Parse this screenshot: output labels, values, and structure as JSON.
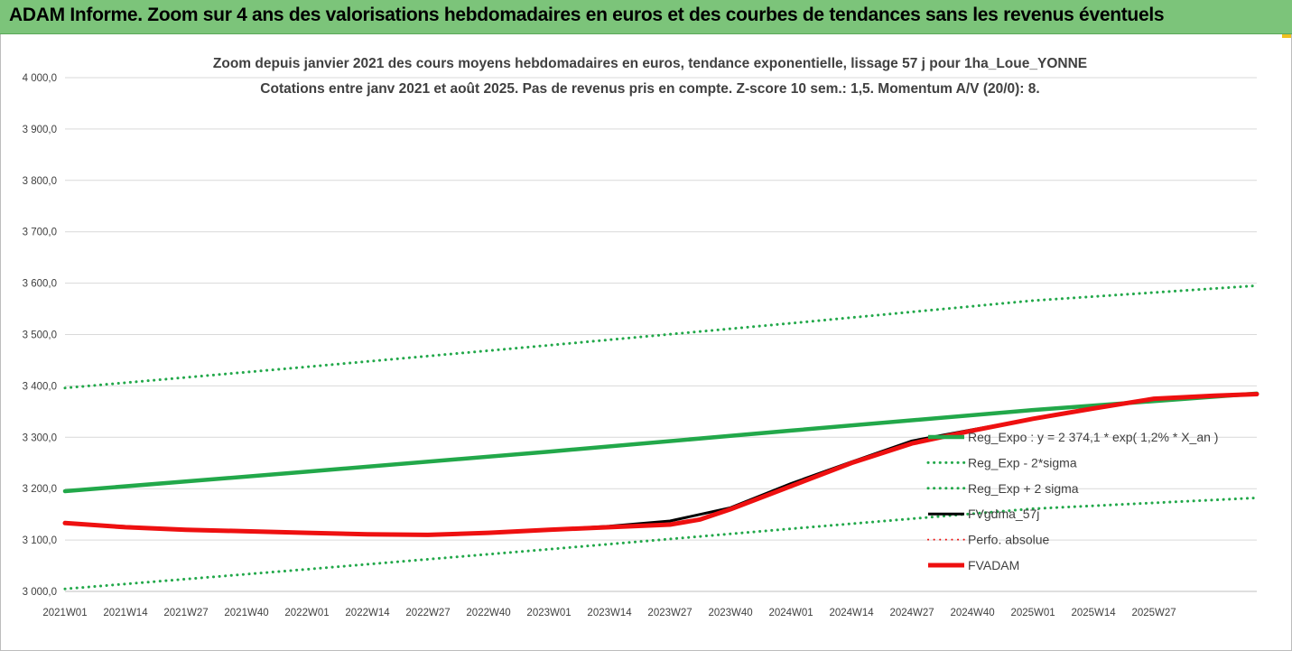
{
  "banner": {
    "title": "ADAM Informe. Zoom sur 4 ans des valorisations hebdomadaires en euros et des courbes de tendances sans les revenus éventuels"
  },
  "chart_data": {
    "type": "line",
    "title": "Zoom depuis janvier 2021 des cours moyens hebdomadaires en euros, tendance exponentielle, lissage 57 j pour 1ha_Loue_YONNE",
    "subtitle": "Cotations entre janv 2021 et août 2025.  Pas de revenus pris en compte. Z-score 10 sem.: 1,5. Momentum A/V (20/0): 8.",
    "xlabel": "",
    "ylabel": "",
    "ylim": [
      3000,
      4000
    ],
    "yticks": [
      "3 000,0",
      "3 100,0",
      "3 200,0",
      "3 300,0",
      "3 400,0",
      "3 500,0",
      "3 600,0",
      "3 700,0",
      "3 800,0",
      "3 900,0",
      "4 000,0"
    ],
    "categories": [
      "2021W01",
      "2021W14",
      "2021W27",
      "2021W40",
      "2022W01",
      "2022W14",
      "2022W27",
      "2022W40",
      "2023W01",
      "2023W14",
      "2023W27",
      "2023W40",
      "2024W01",
      "2024W14",
      "2024W27",
      "2024W40",
      "2025W01",
      "2025W14",
      "2025W27"
    ],
    "x_end_index": 19.7,
    "grid": "horizontal",
    "legend_position": "right",
    "series": [
      {
        "name": "Reg_Expo : y = 2 374,1 * exp( 1,2% *  X_an )",
        "color": "#22a84a",
        "style": "solid",
        "width": 4.5,
        "points": [
          [
            0,
            3195
          ],
          [
            4,
            3233
          ],
          [
            8,
            3272
          ],
          [
            12,
            3313
          ],
          [
            16,
            3353
          ],
          [
            19.7,
            3385
          ]
        ]
      },
      {
        "name": "Reg_Exp - 2*sigma",
        "color": "#22a84a",
        "style": "dotted",
        "width": 3,
        "points": [
          [
            0,
            3005
          ],
          [
            4,
            3043
          ],
          [
            8,
            3082
          ],
          [
            12,
            3122
          ],
          [
            16,
            3161
          ],
          [
            19.7,
            3182
          ]
        ]
      },
      {
        "name": "Reg_Exp + 2 sigma",
        "color": "#22a84a",
        "style": "dotted",
        "width": 3,
        "points": [
          [
            0,
            3396
          ],
          [
            4,
            3437
          ],
          [
            8,
            3479
          ],
          [
            12,
            3522
          ],
          [
            16,
            3566
          ],
          [
            19.7,
            3595
          ]
        ]
      },
      {
        "name": "FVgdma_57j",
        "color": "#000000",
        "style": "solid",
        "width": 3,
        "points": [
          [
            0,
            3133
          ],
          [
            2,
            3120
          ],
          [
            4,
            3114
          ],
          [
            6,
            3110
          ],
          [
            8,
            3120
          ],
          [
            9,
            3127
          ],
          [
            10,
            3137
          ],
          [
            11,
            3163
          ],
          [
            12,
            3210
          ],
          [
            13,
            3252
          ],
          [
            14,
            3293
          ],
          [
            15,
            3315
          ],
          [
            16,
            3336
          ],
          [
            17,
            3356
          ],
          [
            18,
            3376
          ],
          [
            19,
            3381
          ],
          [
            19.7,
            3384
          ]
        ]
      },
      {
        "name": "Perfo. absolue",
        "color": "#ee1010",
        "style": "dotted",
        "width": 2,
        "points": []
      },
      {
        "name": "FVADAM",
        "color": "#ee1010",
        "style": "solid",
        "width": 5,
        "points": [
          [
            0,
            3133
          ],
          [
            1,
            3125
          ],
          [
            2,
            3120
          ],
          [
            3,
            3117
          ],
          [
            4,
            3114
          ],
          [
            5,
            3111
          ],
          [
            6,
            3110
          ],
          [
            7,
            3114
          ],
          [
            8,
            3120
          ],
          [
            9,
            3125
          ],
          [
            10,
            3130
          ],
          [
            10.5,
            3140
          ],
          [
            11,
            3160
          ],
          [
            12,
            3205
          ],
          [
            13,
            3250
          ],
          [
            14,
            3288
          ],
          [
            15,
            3313
          ],
          [
            16,
            3336
          ],
          [
            17,
            3356
          ],
          [
            18,
            3375
          ],
          [
            19,
            3381
          ],
          [
            19.7,
            3384
          ]
        ]
      }
    ]
  }
}
